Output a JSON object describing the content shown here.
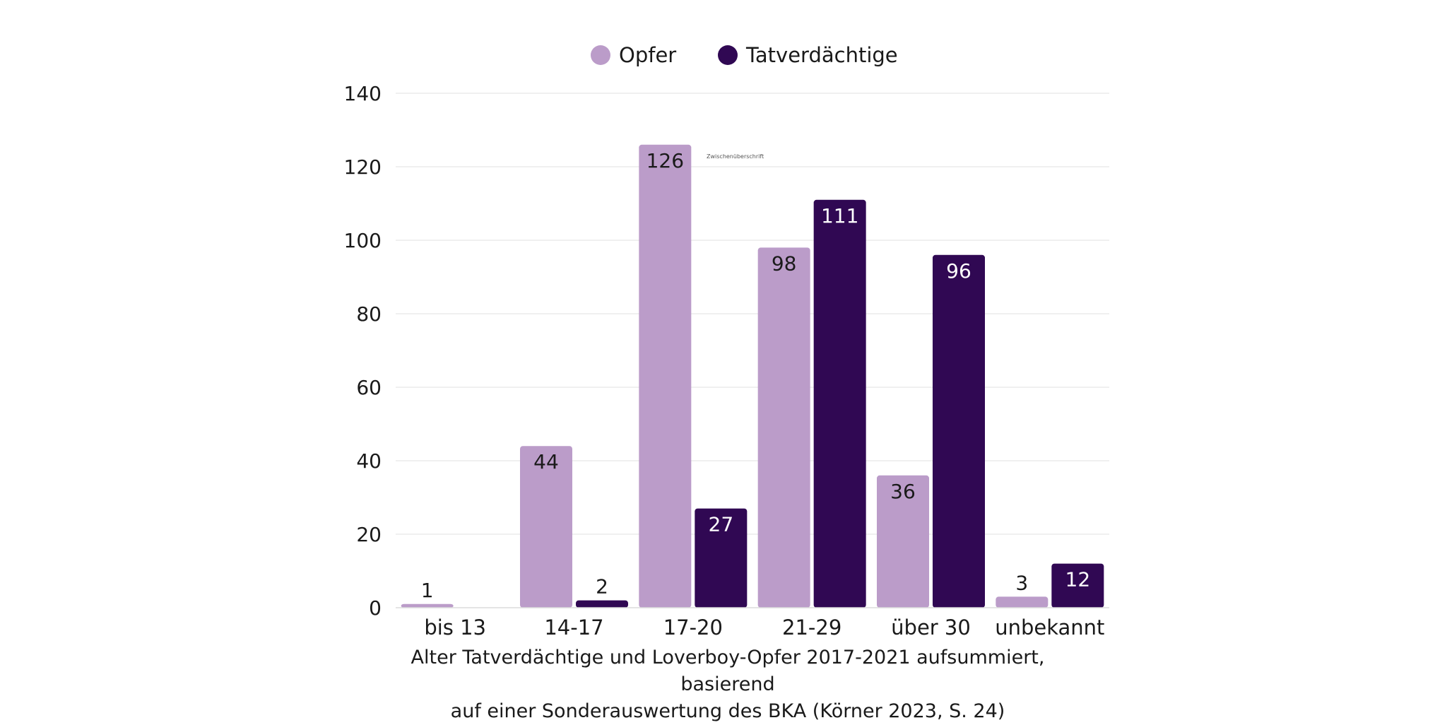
{
  "chart_data": {
    "type": "bar",
    "categories": [
      "bis 13",
      "14-17",
      "17-20",
      "21-29",
      "über 30",
      "unbekannt"
    ],
    "series": [
      {
        "name": "Opfer",
        "color": "#bb9cc9",
        "label_color": "#1a1a1a",
        "values": [
          1,
          44,
          126,
          98,
          36,
          3
        ]
      },
      {
        "name": "Tatverdächtige",
        "color": "#300853",
        "label_color": "#ffffff",
        "values": [
          null,
          2,
          27,
          111,
          96,
          12
        ]
      }
    ],
    "ylim": [
      0,
      140
    ],
    "yticks": [
      0,
      20,
      40,
      60,
      80,
      100,
      120,
      140
    ],
    "grid": true,
    "legend_position": "top-center",
    "annotation": "Zwischenüberschrift",
    "title": "",
    "xlabel": "",
    "ylabel": ""
  },
  "caption": {
    "line1": "Alter Tatverdächtige und Loverboy-Opfer 2017-2021 aufsummiert, basierend",
    "line2": "auf einer Sonderauswertung des BKA (Körner 2023, S. 24)"
  }
}
